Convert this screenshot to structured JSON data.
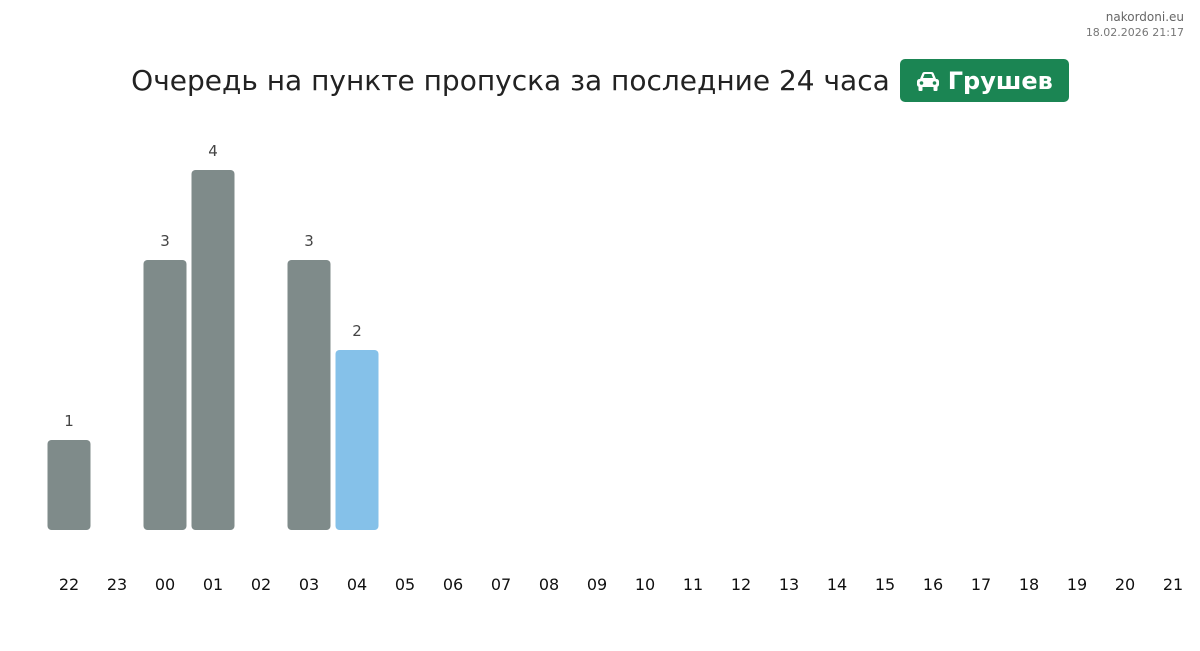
{
  "brand": {
    "site": "nakordoni.eu",
    "timestamp": "18.02.2026 21:17"
  },
  "header": {
    "title": "Очередь на пункте пропуска за последние 24 часа",
    "badge_label": "Грушев",
    "badge_icon": "car-icon",
    "badge_color": "#1b8553"
  },
  "chart_data": {
    "type": "bar",
    "title": "Очередь на пункте пропуска за последние 24 часа",
    "xlabel": "",
    "ylabel": "",
    "categories": [
      "22",
      "23",
      "00",
      "01",
      "02",
      "03",
      "04",
      "05",
      "06",
      "07",
      "08",
      "09",
      "10",
      "11",
      "12",
      "13",
      "14",
      "15",
      "16",
      "17",
      "18",
      "19",
      "20",
      "21"
    ],
    "values": [
      1,
      null,
      3,
      4,
      null,
      3,
      2,
      null,
      null,
      null,
      null,
      null,
      null,
      null,
      null,
      null,
      null,
      null,
      null,
      null,
      null,
      null,
      null,
      null
    ],
    "highlight_index": 6,
    "ylim": [
      0,
      4
    ],
    "grid": false,
    "colors": {
      "bar": "#7f8b8a",
      "current": "#85c1e9"
    }
  }
}
